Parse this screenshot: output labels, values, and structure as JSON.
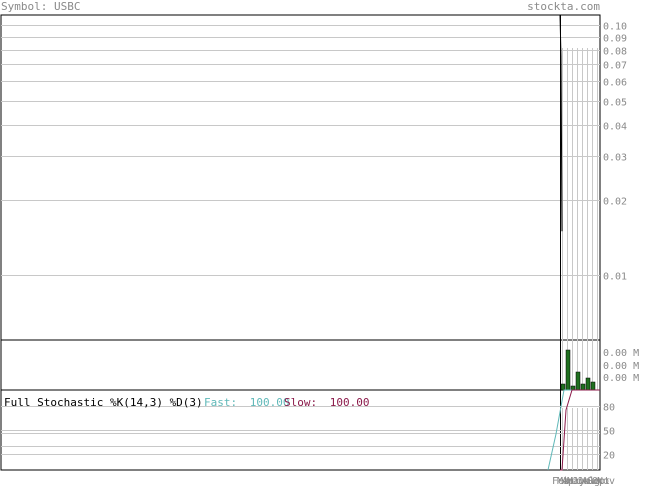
{
  "header": {
    "symbol_label": "Symbol: USBC",
    "site": "stockta.com"
  },
  "colors": {
    "price_line": "#000000",
    "volume_bar": "#1f6f1f",
    "grid": "#c8c8c8",
    "fast": "#5fb8b8",
    "slow": "#8b1a4a",
    "text": "#8a8a8a"
  },
  "chart_data": [
    {
      "type": "line",
      "panel": "price",
      "scale": "log",
      "ylim": [
        0.0055,
        0.11
      ],
      "yticks": [
        "0.10",
        "0.09",
        "0.08",
        "0.07",
        "0.06",
        "0.05",
        "0.04",
        "0.03",
        "0.02",
        "0.01"
      ],
      "series": [
        {
          "values": [
            0.11,
            0.075,
            0.015
          ]
        }
      ]
    },
    {
      "type": "bar",
      "panel": "volume",
      "yticks": [
        "0.00 M",
        "0.00 M",
        "0.00 M"
      ],
      "values": [
        0.15,
        1.0,
        0.1,
        0.45,
        0.15,
        0.3,
        0.2
      ]
    },
    {
      "type": "line",
      "panel": "stochastic",
      "title": "Full Stochastic %K(14,3) %D(3)",
      "fast_label": "Fast:",
      "fast_value": "100.00",
      "slow_label": "Slow:",
      "slow_value": "100.00",
      "ylim": [
        0,
        100
      ],
      "yticks": [
        "80",
        "50",
        "20"
      ],
      "xticks": [
        "Feb",
        "Mar",
        "Apr",
        "May",
        "Jun",
        "Jul",
        "Aug",
        "Sep",
        "Oct",
        "Nov"
      ],
      "series": [
        {
          "name": "Fast",
          "values": [
            0,
            45,
            100,
            100,
            100,
            100,
            100,
            100,
            100,
            100
          ]
        },
        {
          "name": "Slow",
          "values": [
            0,
            0,
            75,
            100,
            100,
            100,
            100,
            100,
            100,
            100
          ]
        }
      ]
    }
  ]
}
